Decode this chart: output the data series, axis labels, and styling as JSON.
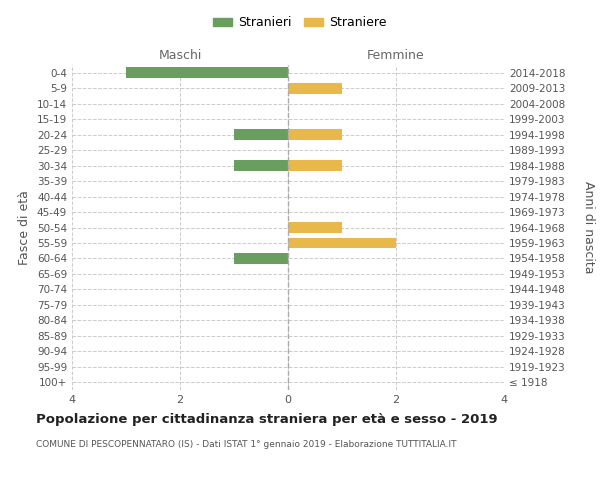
{
  "age_groups": [
    "100+",
    "95-99",
    "90-94",
    "85-89",
    "80-84",
    "75-79",
    "70-74",
    "65-69",
    "60-64",
    "55-59",
    "50-54",
    "45-49",
    "40-44",
    "35-39",
    "30-34",
    "25-29",
    "20-24",
    "15-19",
    "10-14",
    "5-9",
    "0-4"
  ],
  "birth_years": [
    "≤ 1918",
    "1919-1923",
    "1924-1928",
    "1929-1933",
    "1934-1938",
    "1939-1943",
    "1944-1948",
    "1949-1953",
    "1954-1958",
    "1959-1963",
    "1964-1968",
    "1969-1973",
    "1974-1978",
    "1979-1983",
    "1984-1988",
    "1989-1993",
    "1994-1998",
    "1999-2003",
    "2004-2008",
    "2009-2013",
    "2014-2018"
  ],
  "stranieri_maschi": [
    0,
    0,
    0,
    0,
    0,
    0,
    0,
    0,
    1,
    0,
    0,
    0,
    0,
    0,
    1,
    0,
    1,
    0,
    0,
    0,
    3
  ],
  "straniere_femmine": [
    0,
    0,
    0,
    0,
    0,
    0,
    0,
    0,
    0,
    2,
    1,
    0,
    0,
    0,
    1,
    0,
    1,
    0,
    0,
    1,
    0
  ],
  "color_maschi": "#6a9e5f",
  "color_femmine": "#e8b84b",
  "xlim": 4,
  "title": "Popolazione per cittadinanza straniera per età e sesso - 2019",
  "subtitle": "COMUNE DI PESCOPENNATARO (IS) - Dati ISTAT 1° gennaio 2019 - Elaborazione TUTTITALIA.IT",
  "ylabel_left": "Fasce di età",
  "ylabel_right": "Anni di nascita",
  "label_maschi": "Stranieri",
  "label_femmine": "Straniere",
  "header_maschi": "Maschi",
  "header_femmine": "Femmine",
  "grid_color": "#cccccc",
  "bg_color": "#ffffff",
  "bar_height": 0.7
}
